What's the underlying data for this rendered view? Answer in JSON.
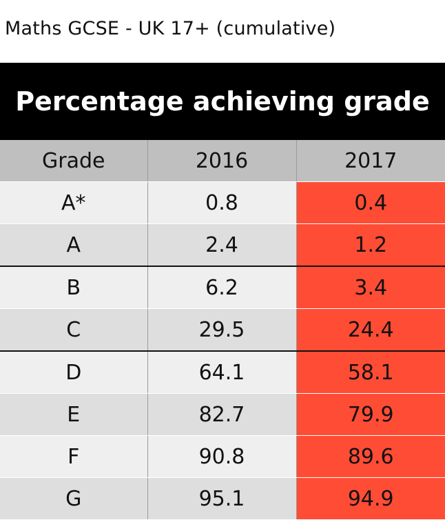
{
  "chart_data": {
    "type": "table",
    "title": "Percentage achieving grade",
    "subtitle": "Maths GCSE - UK 17+ (cumulative)",
    "columns": [
      "Grade",
      "2016",
      "2017"
    ],
    "rows": [
      [
        "A*",
        "0.8",
        "0.4"
      ],
      [
        "A",
        "2.4",
        "1.2"
      ],
      [
        "B",
        "6.2",
        "3.4"
      ],
      [
        "C",
        "29.5",
        "24.4"
      ],
      [
        "D",
        "64.1",
        "58.1"
      ],
      [
        "E",
        "82.7",
        "79.9"
      ],
      [
        "F",
        "90.8",
        "89.6"
      ],
      [
        "G",
        "95.1",
        "94.9"
      ]
    ],
    "highlight_column": "2017",
    "colors": {
      "title_bg": "#000000",
      "header_bg": "#bfbfbf",
      "highlight": "#ff4c35",
      "row_light": "#efefef",
      "row_dark": "#dedede"
    }
  }
}
